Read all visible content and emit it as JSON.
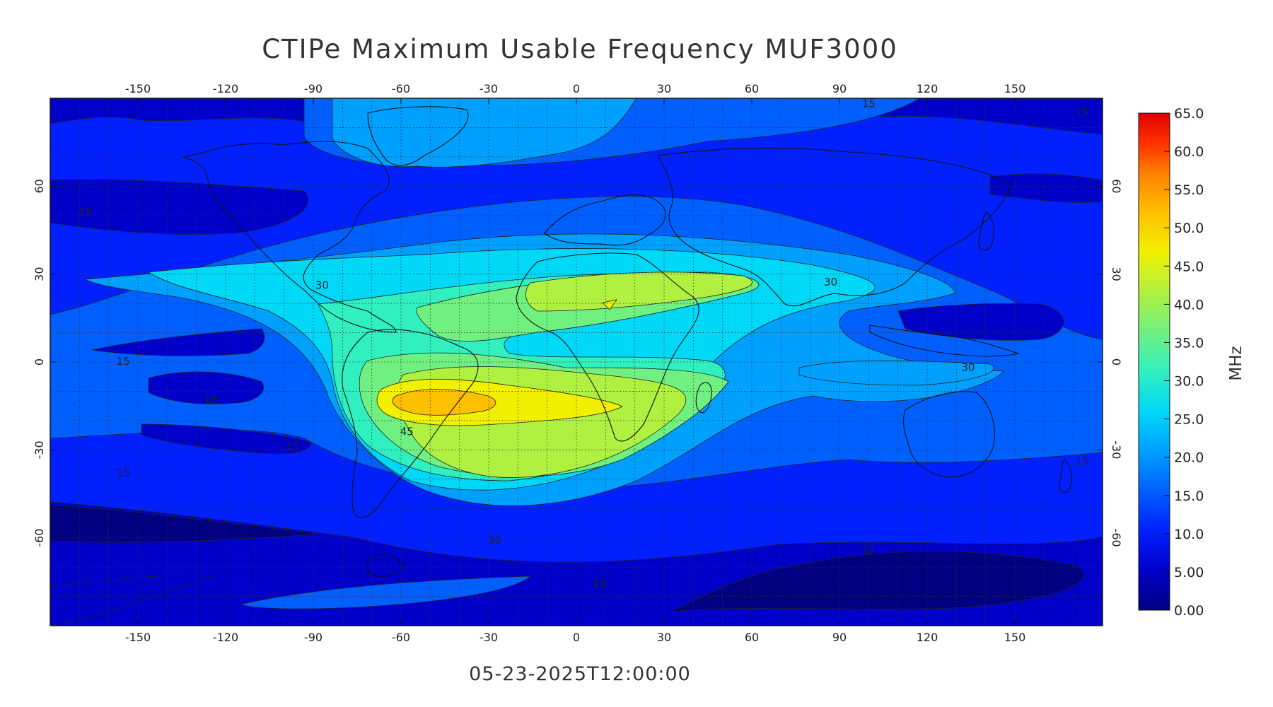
{
  "title": "CTIPe Maximum Usable Frequency MUF3000",
  "timestamp": "05-23-2025T12:00:00",
  "map": {
    "lon_range": [
      -180,
      180
    ],
    "lat_range": [
      -90,
      90
    ],
    "lon_ticks": [
      -150,
      -120,
      -90,
      -60,
      -30,
      0,
      30,
      60,
      90,
      120,
      150
    ],
    "lat_ticks": [
      60,
      30,
      0,
      -30,
      -60
    ],
    "grid": true,
    "grid_spacing_deg": 10
  },
  "colorbar": {
    "unit": "MHz",
    "min": 0,
    "max": 65,
    "ticks": [
      "65.0",
      "60.0",
      "55.0",
      "50.0",
      "45.0",
      "40.0",
      "35.0",
      "30.0",
      "25.0",
      "20.0",
      "15.0",
      "10.0",
      "5.00",
      "0.00"
    ],
    "colors": [
      "#000080",
      "#0000c8",
      "#0020ff",
      "#0060ff",
      "#00a0ff",
      "#00d8f8",
      "#30f0c0",
      "#70f080",
      "#b0f040",
      "#f0f000",
      "#ffc000",
      "#ff8000",
      "#ff3000",
      "#e00000"
    ]
  },
  "contour_labels": [
    {
      "text": "15",
      "lon": -168,
      "lat": 50
    },
    {
      "text": "15",
      "lon": -155,
      "lat": -1
    },
    {
      "text": "15",
      "lon": -125,
      "lat": -14
    },
    {
      "text": "15",
      "lon": -97,
      "lat": -30
    },
    {
      "text": "15",
      "lon": -155,
      "lat": -39
    },
    {
      "text": "15",
      "lon": 8,
      "lat": -77
    },
    {
      "text": "15",
      "lon": 100,
      "lat": -65
    },
    {
      "text": "15",
      "lon": 173,
      "lat": -35
    },
    {
      "text": "15",
      "lon": 173,
      "lat": 84
    },
    {
      "text": "15",
      "lon": 100,
      "lat": 87
    },
    {
      "text": "30",
      "lon": -87,
      "lat": 25
    },
    {
      "text": "30",
      "lon": 87,
      "lat": 26
    },
    {
      "text": "30",
      "lon": -28,
      "lat": -62
    },
    {
      "text": "30",
      "lon": 134,
      "lat": -3
    },
    {
      "text": "45",
      "lon": -58,
      "lat": -25
    }
  ],
  "muf_regions": [
    {
      "value": 2.5,
      "bands": [
        [
          -180,
          -90,
          90,
          90
        ]
      ]
    },
    {
      "value": 7.5,
      "bands": [
        [
          -180,
          -90,
          90,
          -40
        ],
        [
          -180,
          -40,
          90,
          100
        ]
      ]
    },
    {
      "value": 12.5,
      "bands": [
        [
          -160,
          40,
          60,
          90
        ]
      ]
    },
    {
      "value": 12.5,
      "bands": [
        [
          -150,
          -33,
          25,
          10
        ]
      ]
    },
    {
      "value": 12.5,
      "bands": [
        [
          -180,
          -48,
          15,
          150
        ]
      ]
    },
    {
      "value": 12.5,
      "bands": [
        [
          -130,
          -6,
          10,
          8
        ]
      ]
    },
    {
      "value": 12.5,
      "bands": [
        [
          -150,
          -24,
          15,
          6
        ]
      ]
    },
    {
      "value": 17.5,
      "bands": [
        [
          -110,
          16,
          38,
          16
        ]
      ]
    },
    {
      "value": 17.5,
      "bands": [
        [
          -180,
          -58,
          12,
          170
        ]
      ]
    },
    {
      "value": 22.5,
      "bands": [
        [
          -160,
          0,
          26,
          14
        ]
      ]
    },
    {
      "value": 27.5,
      "bands": [
        [
          -100,
          -30,
          25,
          60
        ]
      ]
    },
    {
      "value": 32.5,
      "bands": [
        [
          -50,
          15,
          40,
          38
        ]
      ]
    },
    {
      "value": 37.5,
      "bands": [
        [
          -30,
          20,
          -20,
          18
        ]
      ]
    },
    {
      "value": 42.5,
      "bands": [
        [
          -50,
          -25,
          40,
          20
        ]
      ]
    },
    {
      "value": 47.5,
      "bands": [
        [
          -60,
          -20,
          20,
          8
        ]
      ]
    },
    {
      "value": 52.5,
      "bands": [
        [
          -60,
          -20,
          20,
          2
        ]
      ]
    }
  ]
}
